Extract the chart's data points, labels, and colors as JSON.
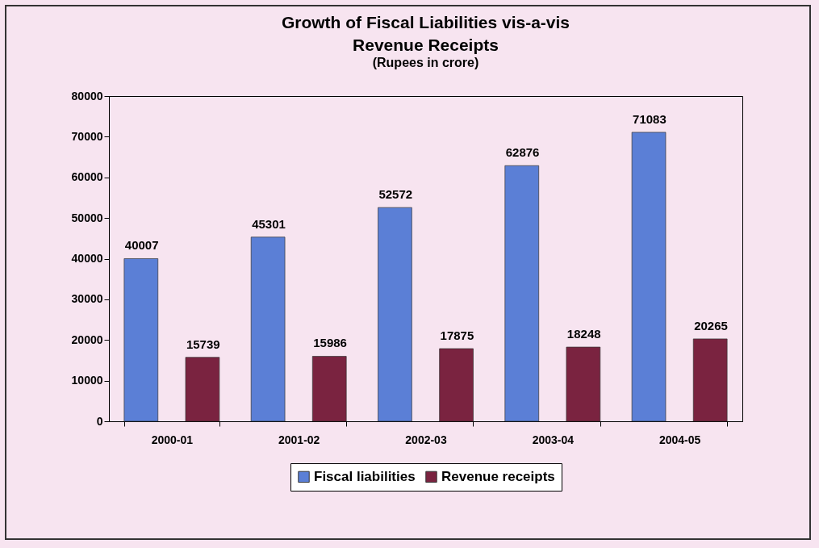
{
  "chart_data": {
    "type": "bar",
    "title": "Growth of Fiscal Liabilities vis-a-vis\nRevenue Receipts",
    "subtitle": "(Rupees in crore)",
    "categories": [
      "2000-01",
      "2001-02",
      "2002-03",
      "2003-04",
      "2004-05"
    ],
    "series": [
      {
        "name": "Fiscal liabilities",
        "color": "#5b7fd6",
        "values": [
          40007,
          45301,
          52572,
          62876,
          71083
        ]
      },
      {
        "name": "Revenue receipts",
        "color": "#7a2340",
        "values": [
          15739,
          15986,
          17875,
          18248,
          20265
        ]
      }
    ],
    "ylim": [
      0,
      80000
    ],
    "yticks": [
      0,
      10000,
      20000,
      30000,
      40000,
      50000,
      60000,
      70000,
      80000
    ],
    "grid": false,
    "legend": "bottom",
    "data_labels": true
  }
}
